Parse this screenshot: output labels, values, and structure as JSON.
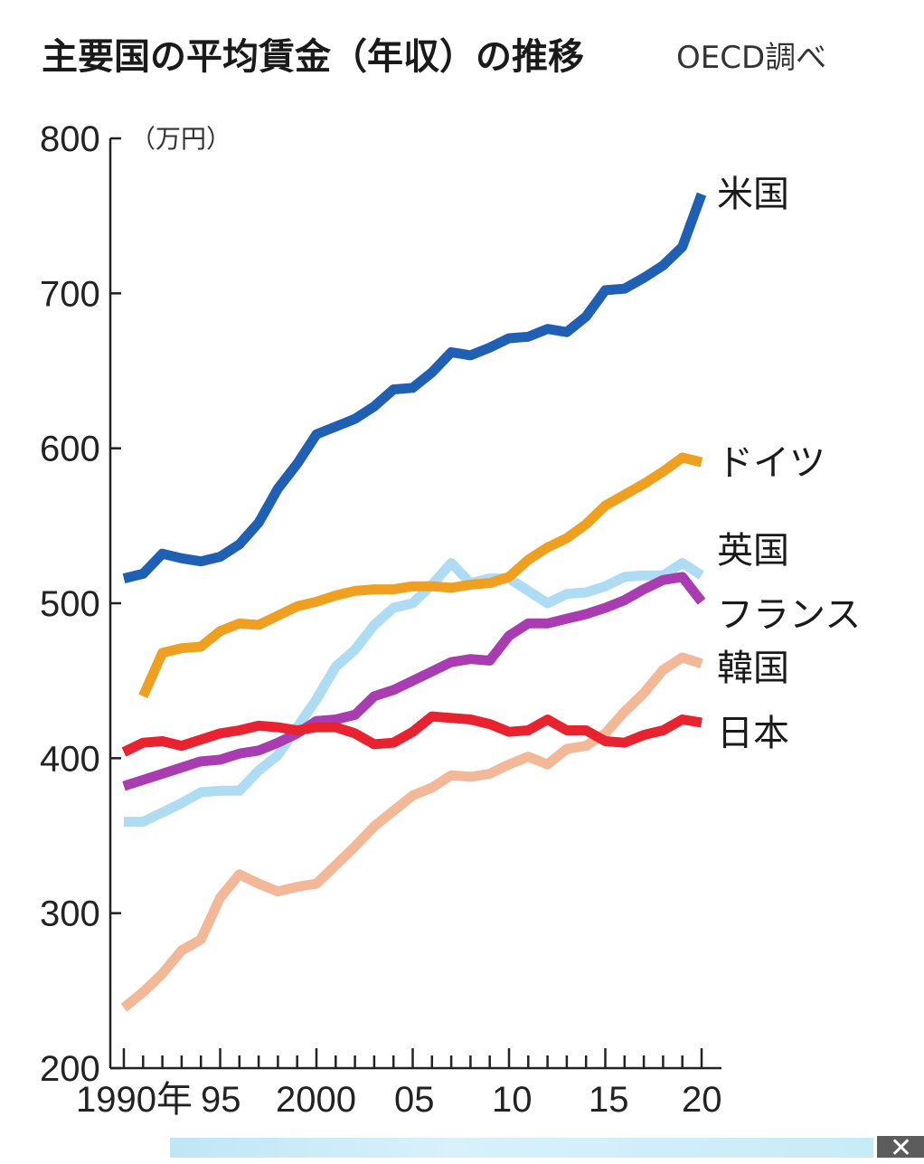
{
  "header": {
    "title": "主要国の平均賃金（年収）の推移",
    "source": "OECD調べ"
  },
  "chart_data": {
    "type": "line",
    "title": "主要国の平均賃金（年収）の推移",
    "source": "OECD調べ",
    "ylabel": "（万円）",
    "xlabel": "",
    "ylim": [
      200,
      800
    ],
    "xlim": [
      1990,
      2020
    ],
    "yticks": [
      200,
      300,
      400,
      500,
      600,
      700,
      800
    ],
    "ytick_labels": [
      "200",
      "300",
      "400",
      "500",
      "600",
      "700",
      "800"
    ],
    "xticks": [
      1990,
      1995,
      2000,
      2005,
      2010,
      2015,
      2020
    ],
    "xtick_labels": [
      "1990年",
      "95",
      "2000",
      "05",
      "10",
      "15",
      "20"
    ],
    "grid": false,
    "legend": "direct labels at right end of each line",
    "x": [
      1990,
      1991,
      1992,
      1993,
      1994,
      1995,
      1996,
      1997,
      1998,
      1999,
      2000,
      2001,
      2002,
      2003,
      2004,
      2005,
      2006,
      2007,
      2008,
      2009,
      2010,
      2011,
      2012,
      2013,
      2014,
      2015,
      2016,
      2017,
      2018,
      2019,
      2020
    ],
    "series": [
      {
        "name": "米国",
        "color": "#1f5fb4",
        "values": [
          516,
          519,
          532,
          529,
          527,
          530,
          538,
          552,
          574,
          590,
          609,
          614,
          619,
          627,
          638,
          639,
          649,
          662,
          660,
          665,
          671,
          672,
          677,
          675,
          685,
          702,
          703,
          710,
          718,
          730,
          764
        ]
      },
      {
        "name": "ドイツ",
        "color": "#f0a020",
        "start": 1991,
        "values": [
          null,
          440,
          468,
          471,
          472,
          482,
          487,
          486,
          492,
          498,
          501,
          505,
          508,
          509,
          509,
          511,
          511,
          510,
          512,
          513,
          517,
          528,
          536,
          542,
          551,
          563,
          570,
          577,
          585,
          594,
          591
        ]
      },
      {
        "name": "英国",
        "color": "#aedcf2",
        "values": [
          359,
          359,
          365,
          371,
          378,
          379,
          379,
          392,
          402,
          420,
          438,
          459,
          470,
          486,
          497,
          500,
          512,
          526,
          513,
          516,
          516,
          508,
          500,
          506,
          507,
          511,
          517,
          518,
          518,
          526,
          518
        ]
      },
      {
        "name": "フランス",
        "color": "#a83cb0",
        "values": [
          382,
          386,
          390,
          394,
          398,
          399,
          403,
          405,
          410,
          416,
          424,
          425,
          428,
          440,
          444,
          450,
          456,
          462,
          464,
          463,
          479,
          487,
          487,
          490,
          493,
          497,
          502,
          509,
          515,
          517,
          501
        ]
      },
      {
        "name": "韓国",
        "color": "#f2b898",
        "values": [
          239,
          249,
          261,
          276,
          283,
          310,
          325,
          319,
          314,
          317,
          319,
          331,
          343,
          356,
          366,
          376,
          381,
          389,
          388,
          390,
          396,
          401,
          396,
          406,
          408,
          416,
          430,
          442,
          457,
          465,
          461
        ]
      },
      {
        "name": "日本",
        "color": "#e8222e",
        "values": [
          404,
          410,
          411,
          408,
          412,
          416,
          418,
          421,
          420,
          418,
          420,
          420,
          416,
          409,
          410,
          417,
          427,
          426,
          425,
          422,
          417,
          418,
          425,
          418,
          418,
          411,
          410,
          415,
          418,
          425,
          423
        ]
      }
    ]
  },
  "banner": {
    "close_glyph": "✕"
  }
}
